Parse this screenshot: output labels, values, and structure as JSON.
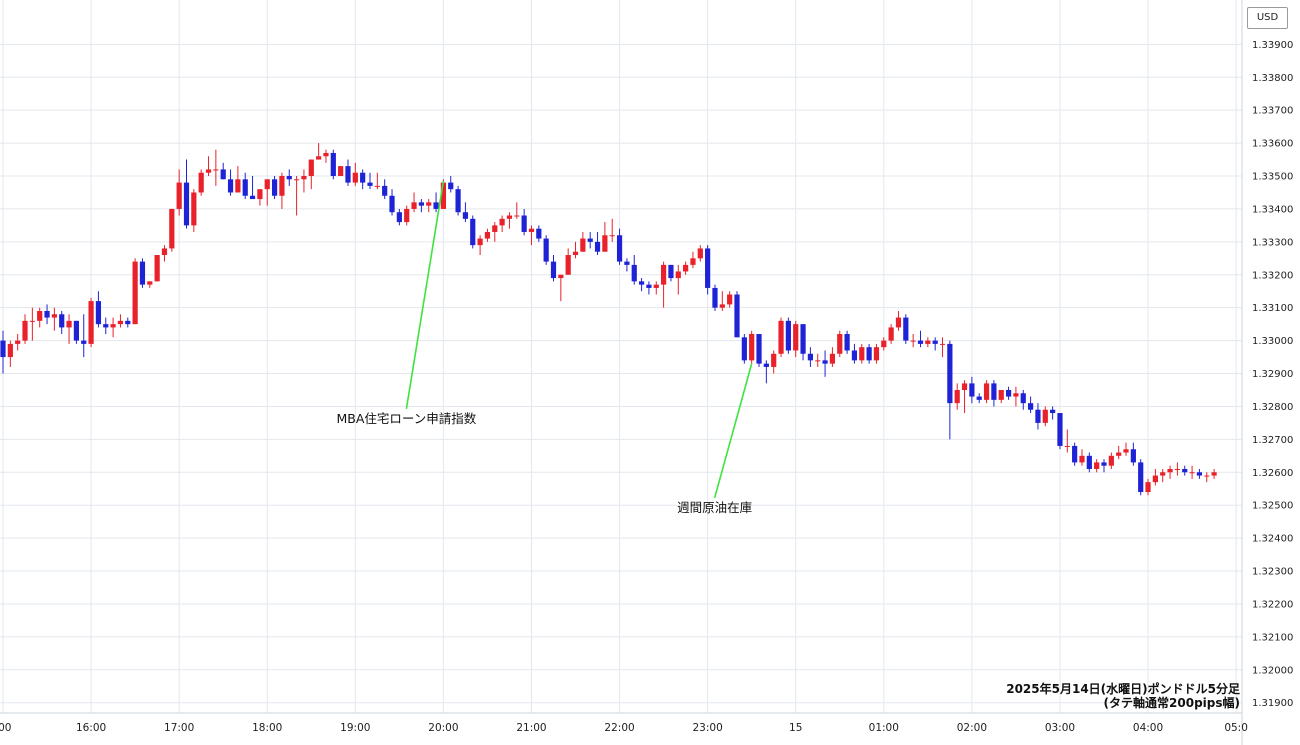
{
  "currency_label": "USD",
  "chart_data": {
    "type": "candlestick",
    "title": "",
    "caption_line1": "2025年5月14日(水曜日)ポンドドル5分足",
    "caption_line2": "(タテ軸通常200pips幅)",
    "colors": {
      "up": "#e8212a",
      "down": "#1f23d6",
      "grid": "#e3e8ee",
      "annotation_line": "#3ee33e"
    },
    "grid": true,
    "ylim": [
      1.3189,
      1.3398
    ],
    "y_ticks": [
      "1.31900",
      "1.32000",
      "1.32100",
      "1.32200",
      "1.32300",
      "1.32400",
      "1.32500",
      "1.32600",
      "1.32700",
      "1.32800",
      "1.32900",
      "1.33000",
      "1.33100",
      "1.33200",
      "1.33300",
      "1.33400",
      "1.33500",
      "1.33600",
      "1.33700",
      "1.33800",
      "1.33900"
    ],
    "x_ticks": [
      {
        "label": ":00",
        "index": 0
      },
      {
        "label": "16:00",
        "index": 12
      },
      {
        "label": "17:00",
        "index": 24
      },
      {
        "label": "18:00",
        "index": 36
      },
      {
        "label": "19:00",
        "index": 48
      },
      {
        "label": "20:00",
        "index": 60
      },
      {
        "label": "21:00",
        "index": 72
      },
      {
        "label": "22:00",
        "index": 84
      },
      {
        "label": "23:00",
        "index": 96
      },
      {
        "label": "15",
        "index": 108
      },
      {
        "label": "01:00",
        "index": 120
      },
      {
        "label": "02:00",
        "index": 132
      },
      {
        "label": "03:00",
        "index": 144
      },
      {
        "label": "04:00",
        "index": 156
      },
      {
        "label": "05:0",
        "index": 168
      }
    ],
    "annotations": [
      {
        "text": "MBA住宅ローン申請指数",
        "index": 60,
        "price": 1.33485,
        "text_price": 1.3275
      },
      {
        "text": "週間原油在庫",
        "index": 102,
        "price": 1.3293,
        "text_price": 1.3248
      }
    ],
    "candles": [
      [
        1.33,
        1.3303,
        1.329,
        1.3295
      ],
      [
        1.3295,
        1.33,
        1.3292,
        1.3299
      ],
      [
        1.3299,
        1.3302,
        1.3297,
        1.33
      ],
      [
        1.33,
        1.3308,
        1.3299,
        1.3306
      ],
      [
        1.3306,
        1.331,
        1.33,
        1.3306
      ],
      [
        1.3306,
        1.331,
        1.3304,
        1.3309
      ],
      [
        1.3309,
        1.3311,
        1.3305,
        1.3307
      ],
      [
        1.3307,
        1.331,
        1.3303,
        1.3308
      ],
      [
        1.3308,
        1.3309,
        1.3302,
        1.3304
      ],
      [
        1.3304,
        1.3308,
        1.3299,
        1.3306
      ],
      [
        1.3306,
        1.3306,
        1.3299,
        1.33
      ],
      [
        1.33,
        1.3308,
        1.3295,
        1.3299
      ],
      [
        1.3299,
        1.3313,
        1.3298,
        1.3312
      ],
      [
        1.3312,
        1.3315,
        1.3304,
        1.3305
      ],
      [
        1.3305,
        1.3307,
        1.3302,
        1.3304
      ],
      [
        1.3304,
        1.3307,
        1.3301,
        1.3305
      ],
      [
        1.3305,
        1.3308,
        1.3304,
        1.3306
      ],
      [
        1.3306,
        1.3307,
        1.3304,
        1.3305
      ],
      [
        1.3305,
        1.3325,
        1.3305,
        1.3324
      ],
      [
        1.3324,
        1.3325,
        1.3316,
        1.3317
      ],
      [
        1.3317,
        1.3318,
        1.3316,
        1.3318
      ],
      [
        1.3318,
        1.3326,
        1.3318,
        1.3326
      ],
      [
        1.3326,
        1.3329,
        1.3324,
        1.3328
      ],
      [
        1.3328,
        1.334,
        1.3327,
        1.334
      ],
      [
        1.334,
        1.3352,
        1.3338,
        1.3348
      ],
      [
        1.3348,
        1.3355,
        1.3334,
        1.3335
      ],
      [
        1.3335,
        1.3346,
        1.3333,
        1.3345
      ],
      [
        1.3345,
        1.3352,
        1.3344,
        1.3351
      ],
      [
        1.3351,
        1.3356,
        1.335,
        1.3352
      ],
      [
        1.3352,
        1.3358,
        1.3347,
        1.3352
      ],
      [
        1.3352,
        1.3354,
        1.3349,
        1.3349
      ],
      [
        1.3349,
        1.3352,
        1.3344,
        1.3345
      ],
      [
        1.3345,
        1.3353,
        1.3345,
        1.3349
      ],
      [
        1.3349,
        1.3351,
        1.3343,
        1.3344
      ],
      [
        1.3344,
        1.335,
        1.3343,
        1.3343
      ],
      [
        1.3343,
        1.3346,
        1.3341,
        1.3346
      ],
      [
        1.3346,
        1.3349,
        1.3341,
        1.3349
      ],
      [
        1.3349,
        1.335,
        1.3343,
        1.3344
      ],
      [
        1.3344,
        1.3351,
        1.334,
        1.335
      ],
      [
        1.335,
        1.3352,
        1.3347,
        1.3349
      ],
      [
        1.3349,
        1.335,
        1.3338,
        1.3349
      ],
      [
        1.3349,
        1.3352,
        1.3345,
        1.335
      ],
      [
        1.335,
        1.3355,
        1.3346,
        1.3355
      ],
      [
        1.3355,
        1.336,
        1.3355,
        1.3356
      ],
      [
        1.3356,
        1.3358,
        1.3354,
        1.3357
      ],
      [
        1.3357,
        1.3358,
        1.3349,
        1.335
      ],
      [
        1.335,
        1.3353,
        1.335,
        1.3353
      ],
      [
        1.3353,
        1.3355,
        1.3347,
        1.3348
      ],
      [
        1.3348,
        1.3354,
        1.3347,
        1.3351
      ],
      [
        1.3351,
        1.3352,
        1.3346,
        1.3348
      ],
      [
        1.3348,
        1.3351,
        1.3346,
        1.3347
      ],
      [
        1.3347,
        1.3351,
        1.3346,
        1.3347
      ],
      [
        1.3347,
        1.3349,
        1.3343,
        1.3344
      ],
      [
        1.3344,
        1.3346,
        1.3338,
        1.3339
      ],
      [
        1.3339,
        1.334,
        1.3335,
        1.3336
      ],
      [
        1.3336,
        1.3341,
        1.3335,
        1.334
      ],
      [
        1.334,
        1.3345,
        1.3339,
        1.3342
      ],
      [
        1.3342,
        1.3343,
        1.3339,
        1.3341
      ],
      [
        1.3341,
        1.3343,
        1.3339,
        1.3342
      ],
      [
        1.3342,
        1.3345,
        1.3339,
        1.334
      ],
      [
        1.334,
        1.3349,
        1.334,
        1.3348
      ],
      [
        1.3348,
        1.335,
        1.3345,
        1.3346
      ],
      [
        1.3346,
        1.3347,
        1.3338,
        1.3339
      ],
      [
        1.3339,
        1.3342,
        1.3336,
        1.3337
      ],
      [
        1.3337,
        1.3338,
        1.3328,
        1.3329
      ],
      [
        1.3329,
        1.3332,
        1.3326,
        1.3331
      ],
      [
        1.3331,
        1.3334,
        1.333,
        1.3333
      ],
      [
        1.3333,
        1.3336,
        1.333,
        1.3335
      ],
      [
        1.3335,
        1.3338,
        1.3333,
        1.3337
      ],
      [
        1.3337,
        1.3339,
        1.3334,
        1.3338
      ],
      [
        1.3338,
        1.3342,
        1.3337,
        1.3338
      ],
      [
        1.3338,
        1.334,
        1.3332,
        1.3333
      ],
      [
        1.3333,
        1.3335,
        1.3329,
        1.3334
      ],
      [
        1.3334,
        1.3335,
        1.333,
        1.3331
      ],
      [
        1.3331,
        1.3332,
        1.3323,
        1.3324
      ],
      [
        1.3324,
        1.3326,
        1.3318,
        1.3319
      ],
      [
        1.3319,
        1.332,
        1.3312,
        1.332
      ],
      [
        1.332,
        1.3328,
        1.332,
        1.3326
      ],
      [
        1.3326,
        1.333,
        1.3325,
        1.3327
      ],
      [
        1.3327,
        1.3333,
        1.3327,
        1.3331
      ],
      [
        1.3331,
        1.3333,
        1.3328,
        1.333
      ],
      [
        1.333,
        1.3333,
        1.3326,
        1.3327
      ],
      [
        1.3327,
        1.3336,
        1.3327,
        1.3332
      ],
      [
        1.3332,
        1.3337,
        1.333,
        1.3332
      ],
      [
        1.3332,
        1.3334,
        1.3323,
        1.3324
      ],
      [
        1.3324,
        1.3325,
        1.3321,
        1.3323
      ],
      [
        1.3323,
        1.3326,
        1.3317,
        1.3318
      ],
      [
        1.3318,
        1.3319,
        1.3315,
        1.3317
      ],
      [
        1.3317,
        1.3318,
        1.3314,
        1.3316
      ],
      [
        1.3316,
        1.3318,
        1.3314,
        1.3317
      ],
      [
        1.3317,
        1.3324,
        1.331,
        1.3323
      ],
      [
        1.3323,
        1.3323,
        1.3318,
        1.3319
      ],
      [
        1.3319,
        1.3323,
        1.3314,
        1.3321
      ],
      [
        1.3321,
        1.3324,
        1.332,
        1.3323
      ],
      [
        1.3323,
        1.3327,
        1.3322,
        1.3325
      ],
      [
        1.3325,
        1.3329,
        1.3324,
        1.3328
      ],
      [
        1.3328,
        1.3329,
        1.3314,
        1.3316
      ],
      [
        1.3316,
        1.3317,
        1.3309,
        1.331
      ],
      [
        1.331,
        1.3315,
        1.3309,
        1.3311
      ],
      [
        1.3311,
        1.3315,
        1.331,
        1.3314
      ],
      [
        1.3314,
        1.3315,
        1.3301,
        1.3301
      ],
      [
        1.3301,
        1.3302,
        1.3293,
        1.3294
      ],
      [
        1.3294,
        1.3303,
        1.3293,
        1.3302
      ],
      [
        1.3302,
        1.3302,
        1.3292,
        1.3293
      ],
      [
        1.3293,
        1.3294,
        1.3287,
        1.3292
      ],
      [
        1.3292,
        1.3297,
        1.329,
        1.3296
      ],
      [
        1.3296,
        1.3307,
        1.3295,
        1.3306
      ],
      [
        1.3306,
        1.3307,
        1.3296,
        1.3297
      ],
      [
        1.3297,
        1.3306,
        1.3295,
        1.3305
      ],
      [
        1.3305,
        1.3305,
        1.3294,
        1.3296
      ],
      [
        1.3296,
        1.3298,
        1.3292,
        1.3294
      ],
      [
        1.3294,
        1.3296,
        1.3292,
        1.3294
      ],
      [
        1.3294,
        1.3297,
        1.3289,
        1.3293
      ],
      [
        1.3293,
        1.3298,
        1.3292,
        1.3296
      ],
      [
        1.3296,
        1.3303,
        1.3295,
        1.3302
      ],
      [
        1.3302,
        1.3303,
        1.3296,
        1.3297
      ],
      [
        1.3297,
        1.3299,
        1.3293,
        1.3294
      ],
      [
        1.3294,
        1.3299,
        1.3293,
        1.3298
      ],
      [
        1.3298,
        1.3299,
        1.3293,
        1.3294
      ],
      [
        1.3294,
        1.3299,
        1.3293,
        1.3298
      ],
      [
        1.3298,
        1.3301,
        1.3297,
        1.33
      ],
      [
        1.33,
        1.3305,
        1.3299,
        1.3304
      ],
      [
        1.3304,
        1.3309,
        1.3303,
        1.3307
      ],
      [
        1.3307,
        1.3308,
        1.3299,
        1.33
      ],
      [
        1.33,
        1.3302,
        1.3298,
        1.33
      ],
      [
        1.33,
        1.3303,
        1.3298,
        1.3299
      ],
      [
        1.3299,
        1.3301,
        1.3298,
        1.33
      ],
      [
        1.33,
        1.3301,
        1.3297,
        1.3299
      ],
      [
        1.3299,
        1.3301,
        1.3295,
        1.3299
      ],
      [
        1.3299,
        1.33,
        1.327,
        1.3281
      ],
      [
        1.3281,
        1.3287,
        1.3279,
        1.3285
      ],
      [
        1.3285,
        1.3288,
        1.3278,
        1.3287
      ],
      [
        1.3287,
        1.3289,
        1.3281,
        1.3283
      ],
      [
        1.3283,
        1.3284,
        1.3281,
        1.3282
      ],
      [
        1.3282,
        1.3288,
        1.3281,
        1.3287
      ],
      [
        1.3287,
        1.3288,
        1.328,
        1.3282
      ],
      [
        1.3282,
        1.3285,
        1.3281,
        1.3285
      ],
      [
        1.3285,
        1.3286,
        1.3282,
        1.3283
      ],
      [
        1.3283,
        1.3286,
        1.328,
        1.3284
      ],
      [
        1.3284,
        1.3285,
        1.3279,
        1.3281
      ],
      [
        1.3281,
        1.3283,
        1.3278,
        1.3279
      ],
      [
        1.3279,
        1.3281,
        1.3273,
        1.3275
      ],
      [
        1.3275,
        1.328,
        1.3274,
        1.3279
      ],
      [
        1.3279,
        1.328,
        1.3276,
        1.3278
      ],
      [
        1.3278,
        1.3278,
        1.3267,
        1.3268
      ],
      [
        1.3268,
        1.3273,
        1.3266,
        1.3268
      ],
      [
        1.3268,
        1.3269,
        1.3262,
        1.3263
      ],
      [
        1.3263,
        1.3267,
        1.3262,
        1.3265
      ],
      [
        1.3265,
        1.3266,
        1.326,
        1.3261
      ],
      [
        1.3261,
        1.3264,
        1.326,
        1.3263
      ],
      [
        1.3263,
        1.3264,
        1.326,
        1.3262
      ],
      [
        1.3262,
        1.3266,
        1.3261,
        1.3265
      ],
      [
        1.3265,
        1.3268,
        1.3264,
        1.3266
      ],
      [
        1.3266,
        1.3269,
        1.3265,
        1.3267
      ],
      [
        1.3267,
        1.3269,
        1.3262,
        1.3263
      ],
      [
        1.3263,
        1.3264,
        1.3253,
        1.3254
      ],
      [
        1.3254,
        1.3258,
        1.3253,
        1.3257
      ],
      [
        1.3257,
        1.3261,
        1.3256,
        1.3259
      ],
      [
        1.3259,
        1.3261,
        1.3257,
        1.326
      ],
      [
        1.326,
        1.3262,
        1.3258,
        1.3261
      ],
      [
        1.3261,
        1.3263,
        1.3259,
        1.3261
      ],
      [
        1.3261,
        1.3262,
        1.3259,
        1.326
      ],
      [
        1.326,
        1.3262,
        1.3258,
        1.326
      ],
      [
        1.326,
        1.3261,
        1.3258,
        1.3259
      ],
      [
        1.3259,
        1.326,
        1.3257,
        1.3259
      ],
      [
        1.3259,
        1.3261,
        1.3258,
        1.326
      ]
    ]
  }
}
